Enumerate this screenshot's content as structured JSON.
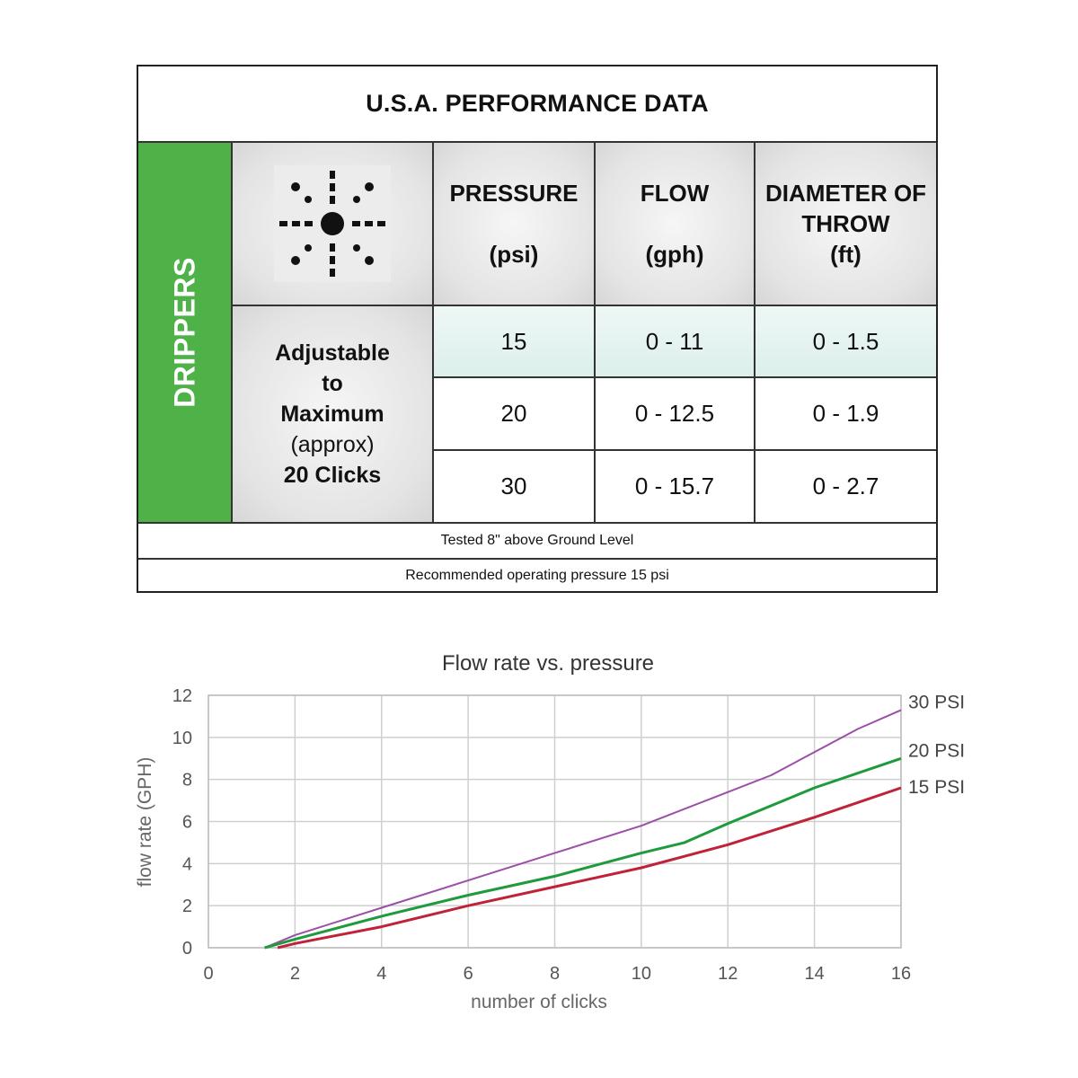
{
  "table": {
    "title": "U.S.A.  PERFORMANCE DATA",
    "band_label": "DRIPPERS",
    "icon": "dripper-spray-pattern-icon",
    "headers": [
      {
        "label": "PRESSURE",
        "unit": "(psi)"
      },
      {
        "label": "FLOW",
        "unit": "(gph)"
      },
      {
        "label": "DIAMETER OF",
        "label2": "THROW",
        "unit": "(ft)"
      }
    ],
    "setting": {
      "line1": "Adjustable",
      "line2": "to",
      "line3": "Maximum",
      "line4": "(approx)",
      "line5": "20 Clicks"
    },
    "rows": [
      {
        "pressure": "15",
        "flow": "0 - 11",
        "diameter": "0 - 1.5"
      },
      {
        "pressure": "20",
        "flow": "0 - 12.5",
        "diameter": "0 - 1.9"
      },
      {
        "pressure": "30",
        "flow": "0 - 15.7",
        "diameter": "0 - 2.7"
      }
    ],
    "notes": [
      "Tested 8\" above Ground Level",
      "Recommended operating pressure 15 psi"
    ],
    "colors": {
      "band": "#4fb248",
      "highlight_row": "#dcefeb"
    }
  },
  "chart_data": {
    "type": "line",
    "title": "Flow rate vs. pressure",
    "xlabel": "number of clicks",
    "ylabel": "flow rate (GPH)",
    "xlim": [
      0,
      16
    ],
    "ylim": [
      0,
      12
    ],
    "xticks": [
      0,
      2,
      4,
      6,
      8,
      10,
      12,
      14,
      16
    ],
    "yticks": [
      0,
      2,
      4,
      6,
      8,
      10,
      12
    ],
    "grid": true,
    "legend": "right-end labels",
    "series": [
      {
        "name": "30 PSI",
        "color": "#9b4fa6",
        "x": [
          1.3,
          2,
          4,
          6,
          8,
          10,
          12,
          13,
          15,
          16
        ],
        "y": [
          0,
          0.6,
          1.9,
          3.2,
          4.5,
          5.8,
          7.4,
          8.2,
          10.4,
          11.3
        ]
      },
      {
        "name": "20 PSI",
        "color": "#1f9a3c",
        "x": [
          1.3,
          2,
          4,
          6,
          8,
          10,
          11,
          12,
          14,
          16
        ],
        "y": [
          0,
          0.4,
          1.5,
          2.5,
          3.4,
          4.5,
          5.0,
          5.9,
          7.6,
          9.0
        ]
      },
      {
        "name": "15 PSI",
        "color": "#c0223a",
        "x": [
          1.6,
          2,
          4,
          6,
          8,
          10,
          12,
          14,
          16
        ],
        "y": [
          0,
          0.2,
          1.0,
          2.0,
          2.9,
          3.8,
          4.9,
          6.2,
          7.6
        ]
      }
    ]
  }
}
